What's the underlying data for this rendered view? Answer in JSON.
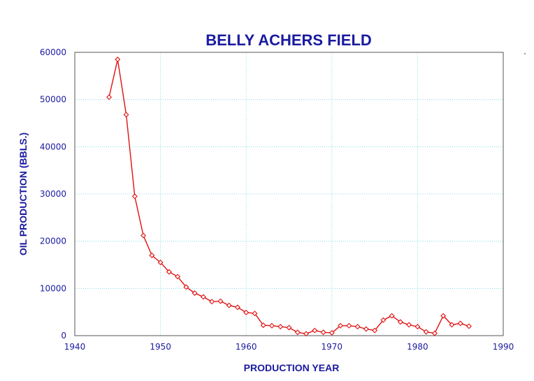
{
  "chart_data": {
    "type": "line",
    "title": "BELLY ACHERS FIELD",
    "xlabel": "PRODUCTION YEAR",
    "ylabel": "OIL PRODUCTION (BBLS.)",
    "xlim": [
      1940,
      1990
    ],
    "ylim": [
      0,
      60000
    ],
    "x_ticks": [
      1940,
      1950,
      1960,
      1970,
      1980,
      1990
    ],
    "y_ticks": [
      0,
      10000,
      20000,
      30000,
      40000,
      50000,
      60000
    ],
    "grid": true,
    "legend": "none",
    "colors": {
      "series": "#e01010",
      "text": "#1a1aa0",
      "grid": "#70d0e0"
    },
    "series": [
      {
        "x": [
          1944,
          1945,
          1946,
          1947,
          1948,
          1949,
          1950,
          1951,
          1952,
          1953,
          1954,
          1955,
          1956,
          1957,
          1958,
          1959,
          1960,
          1961,
          1962,
          1963,
          1964,
          1965,
          1966,
          1967,
          1968,
          1969,
          1970,
          1971,
          1972,
          1973,
          1974,
          1975,
          1976,
          1977,
          1978,
          1979,
          1980,
          1981,
          1982,
          1983,
          1984,
          1985,
          1986
        ],
        "y": [
          50500,
          58500,
          46800,
          29500,
          21200,
          17000,
          15500,
          13500,
          12500,
          10300,
          9000,
          8200,
          7200,
          7300,
          6400,
          6000,
          4900,
          4700,
          2200,
          2100,
          1900,
          1700,
          700,
          400,
          1100,
          700,
          600,
          2100,
          2100,
          1900,
          1400,
          1100,
          3300,
          4200,
          2900,
          2300,
          1900,
          800,
          500,
          4200,
          2300,
          2600,
          2000
        ]
      }
    ]
  }
}
